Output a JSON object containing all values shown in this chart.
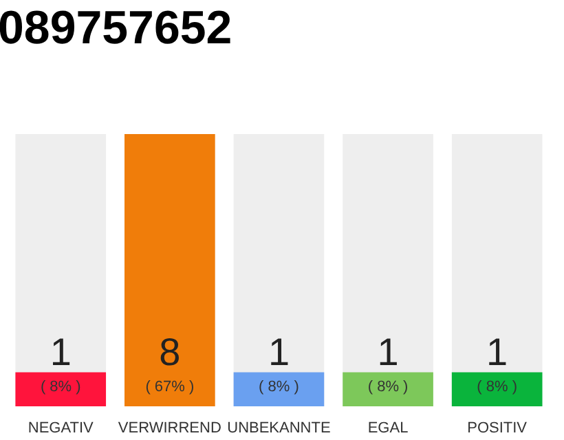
{
  "chart_data": {
    "type": "bar",
    "title": "089757652",
    "categories": [
      "NEGATIV",
      "VERWIRREND",
      "UNBEKANNTE",
      "EGAL",
      "POSITIV"
    ],
    "values": [
      1,
      8,
      1,
      1,
      1
    ],
    "colors": [
      "#ff143c",
      "#f07d0a",
      "#6aa0f0",
      "#7dc85a",
      "#0ab43c"
    ],
    "data_labels": true,
    "annotations": [
      {
        "text": "( 8% )",
        "x": "NEGATIV",
        "y": 0
      },
      {
        "text": "( 67% )",
        "x": "VERWIRREND",
        "y": 0
      },
      {
        "text": "( 8% )",
        "x": "UNBEKANNTE",
        "y": 0
      },
      {
        "text": "( 8% )",
        "x": "EGAL",
        "y": 0
      },
      {
        "text": "( 8% )",
        "x": "POSITIV",
        "y": 0
      }
    ],
    "grid": false
  }
}
